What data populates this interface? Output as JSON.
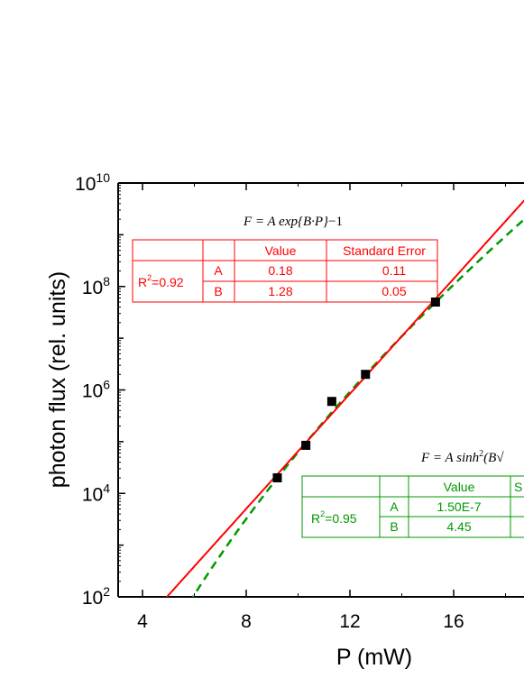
{
  "chart_data": {
    "type": "scatter",
    "xlabel": "P (mW)",
    "ylabel": "photon flux (rel. units)",
    "xlim": [
      3,
      20.7
    ],
    "ylog": true,
    "ylim_exp": [
      2,
      10
    ],
    "x_ticks": [
      4,
      8,
      12,
      16
    ],
    "x_tick_labels": [
      "4",
      "8",
      "12",
      "16"
    ],
    "y_ticks_exp": [
      2,
      4,
      6,
      8,
      10
    ],
    "y_tick_bases": [
      "10",
      "10",
      "10",
      "10",
      "10"
    ],
    "y_tick_sups": [
      "2",
      "4",
      "6",
      "8",
      "10"
    ],
    "colors": {
      "fit1": "#ff0000",
      "fit2": "#009900",
      "points": "#000000"
    },
    "points": [
      {
        "x": 9.2,
        "y": 20000
      },
      {
        "x": 10.3,
        "y": 85000
      },
      {
        "x": 11.3,
        "y": 600000
      },
      {
        "x": 12.6,
        "y": 2000000
      },
      {
        "x": 15.3,
        "y": 50000000
      }
    ],
    "fit1": {
      "formula_prefix": "F = A exp{B·P}",
      "formula_suffix": "−1",
      "header": [
        "",
        "",
        "Value",
        "Standard Error"
      ],
      "r2_base": "R",
      "r2_sup": "2",
      "r2_rest": "=0.92",
      "rows": [
        {
          "param": "A",
          "value": "0.18",
          "err": "0.11"
        },
        {
          "param": "B",
          "value": "1.28",
          "err": "0.05"
        }
      ]
    },
    "fit2": {
      "formula_prefix": "F = A sinh",
      "formula_sup": "2",
      "formula_suffix": "(B√",
      "header": [
        "",
        "",
        "Value",
        "S"
      ],
      "r2_base": "R",
      "r2_sup": "2",
      "r2_rest": "=0.95",
      "rows": [
        {
          "param": "A",
          "value": "1.50E-7",
          "err": ""
        },
        {
          "param": "B",
          "value": "4.45",
          "err": ""
        }
      ]
    }
  }
}
